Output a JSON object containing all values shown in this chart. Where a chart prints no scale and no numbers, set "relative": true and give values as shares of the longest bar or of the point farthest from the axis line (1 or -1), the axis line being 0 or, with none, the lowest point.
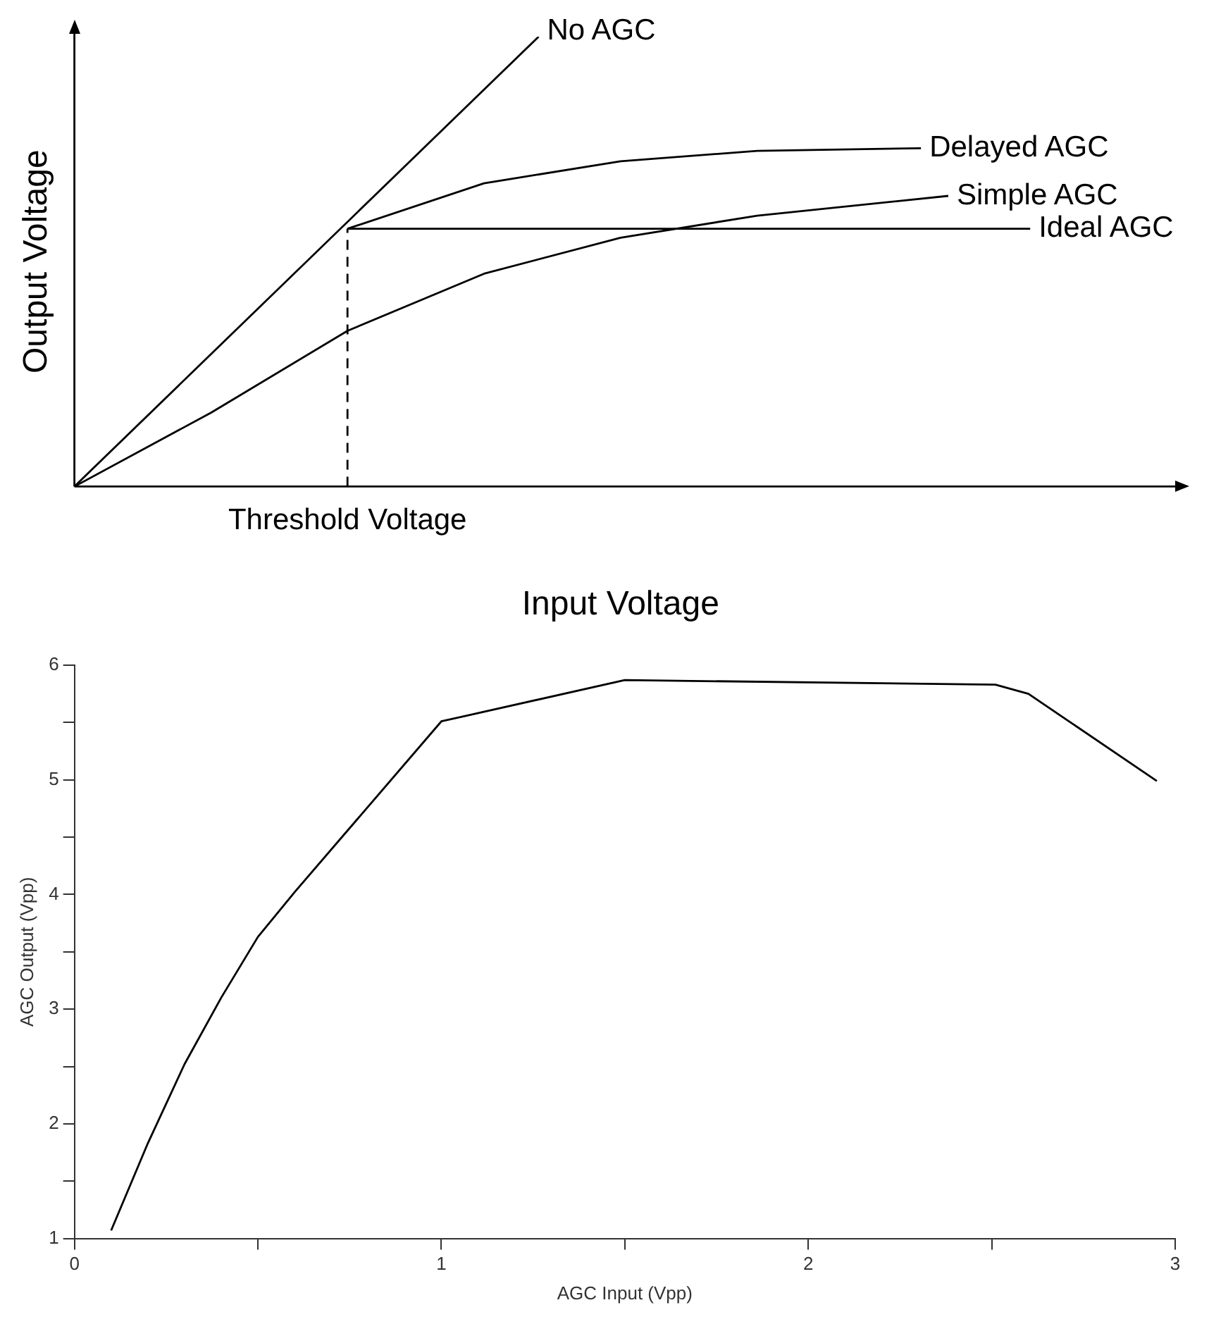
{
  "chart_data": [
    {
      "type": "line",
      "relative": true,
      "xlabel": "Input Voltage",
      "ylabel": "Output Voltage",
      "legend": false,
      "grid": false,
      "marker": "none",
      "categories": [
        null,
        null,
        null,
        null,
        null,
        null,
        null,
        null,
        null,
        null,
        null,
        null,
        null,
        null,
        null,
        null,
        null,
        null,
        null,
        null,
        null,
        null,
        null,
        null,
        null,
        null,
        null,
        null,
        null,
        null,
        null,
        null,
        null,
        null,
        null,
        null,
        null,
        null,
        null,
        null,
        null
      ],
      "ref_lines": [
        {
          "axis": "x",
          "label": "Threshold Voltage",
          "line_style": "dashed",
          "color": "#000000"
        }
      ],
      "series": [
        {
          "name": "No AGC",
          "color": "#000000",
          "values": [
            0,
            null,
            null,
            null,
            null,
            null,
            null,
            null,
            null,
            null,
            null,
            null,
            null,
            null,
            null,
            null,
            null,
            1,
            null,
            null,
            null,
            null,
            null,
            null,
            null,
            null,
            null,
            null,
            null,
            null,
            null,
            null,
            null,
            null,
            null,
            null,
            null,
            null,
            null,
            null,
            null
          ]
        },
        {
          "name": "Delayed AGC",
          "color": "#000000",
          "values": [
            null,
            null,
            null,
            null,
            null,
            null,
            null,
            null,
            null,
            null,
            0.573,
            null,
            null,
            null,
            null,
            0.674,
            null,
            null,
            null,
            null,
            0.723,
            null,
            null,
            null,
            null,
            0.746,
            null,
            null,
            null,
            null,
            null,
            0.752,
            null,
            null,
            null,
            null,
            null,
            null,
            null,
            null,
            null
          ]
        },
        {
          "name": "Simple AGC",
          "color": "#000000",
          "values": [
            0,
            null,
            null,
            null,
            null,
            0.164,
            null,
            null,
            null,
            null,
            0.346,
            null,
            null,
            null,
            null,
            0.473,
            null,
            null,
            null,
            null,
            0.553,
            null,
            null,
            null,
            null,
            0.602,
            null,
            null,
            null,
            null,
            null,
            null,
            0.646,
            null,
            null,
            null,
            null,
            null,
            null,
            null,
            null
          ]
        },
        {
          "name": "Ideal AGC",
          "color": "#000000",
          "values": [
            null,
            null,
            null,
            null,
            null,
            null,
            null,
            null,
            null,
            null,
            0.573,
            null,
            null,
            null,
            null,
            null,
            null,
            null,
            null,
            null,
            null,
            null,
            null,
            null,
            null,
            null,
            null,
            null,
            null,
            null,
            null,
            null,
            null,
            null,
            null,
            0.573,
            null,
            null,
            null,
            null,
            null
          ]
        }
      ]
    },
    {
      "type": "line",
      "xlabel": "AGC Input (Vpp)",
      "ylabel": "AGC Output (Vpp)",
      "legend": false,
      "grid": false,
      "marker": "none",
      "xlim": [
        0,
        3
      ],
      "ylim": [
        1,
        6
      ],
      "xticks": [
        0,
        {
          "value": 0.5,
          "label": null
        },
        1,
        {
          "value": 1.5,
          "label": null
        },
        2,
        {
          "value": 2.5,
          "label": null
        },
        3
      ],
      "yticks": [
        1,
        {
          "value": 1.5,
          "label": null
        },
        2,
        {
          "value": 2.5,
          "label": null
        },
        3,
        {
          "value": 3.5,
          "label": null
        },
        4,
        {
          "value": 4.5,
          "label": null
        },
        5,
        {
          "value": 5.5,
          "label": null
        },
        6
      ],
      "series": [
        {
          "color": "#000000",
          "x": [
            0.1,
            0.2,
            0.3,
            0.4,
            0.5,
            0.6,
            1.0,
            1.5,
            2.51,
            2.6,
            2.95
          ],
          "values": [
            1.07,
            1.83,
            2.52,
            3.1,
            3.63,
            4.02,
            5.51,
            5.87,
            5.83,
            5.75,
            4.99
          ]
        }
      ]
    }
  ]
}
